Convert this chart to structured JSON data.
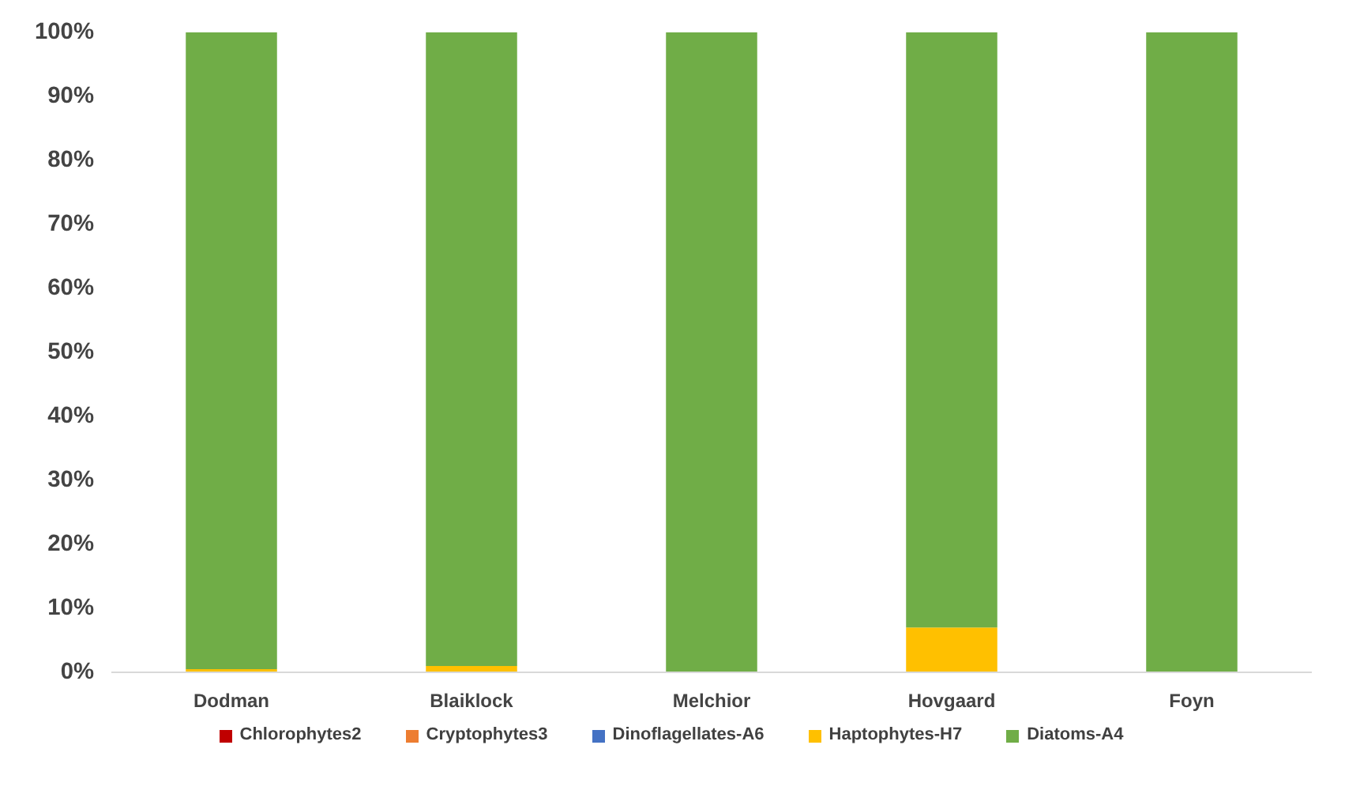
{
  "chart_data": {
    "type": "bar",
    "stacked": true,
    "categories": [
      "Dodman",
      "Blaiklock",
      "Melchior",
      "Hovgaard",
      "Foyn"
    ],
    "series": [
      {
        "name": "Chlorophytes2",
        "color": "#c00000",
        "values": [
          0,
          0,
          0,
          0,
          0
        ]
      },
      {
        "name": "Cryptophytes3",
        "color": "#ed7d31",
        "values": [
          0,
          0,
          0,
          0,
          0
        ]
      },
      {
        "name": "Dinoflagellates-A6",
        "color": "#4472c4",
        "values": [
          0,
          0,
          0,
          0,
          0
        ]
      },
      {
        "name": "Haptophytes-H7",
        "color": "#ffc000",
        "values": [
          0.5,
          1,
          0,
          7,
          0
        ]
      },
      {
        "name": "Diatoms-A4",
        "color": "#70ad47",
        "values": [
          99.5,
          99,
          100,
          93,
          100
        ]
      }
    ],
    "ylim": [
      0,
      100
    ],
    "yticks": [
      {
        "value": 0,
        "label": "0%"
      },
      {
        "value": 10,
        "label": "10%"
      },
      {
        "value": 20,
        "label": "20%"
      },
      {
        "value": 30,
        "label": "30%"
      },
      {
        "value": 40,
        "label": "40%"
      },
      {
        "value": 50,
        "label": "50%"
      },
      {
        "value": 60,
        "label": "60%"
      },
      {
        "value": 70,
        "label": "70%"
      },
      {
        "value": 80,
        "label": "80%"
      },
      {
        "value": 90,
        "label": "90%"
      },
      {
        "value": 100,
        "label": "100%"
      }
    ],
    "grid": false,
    "legend": "bottom"
  }
}
